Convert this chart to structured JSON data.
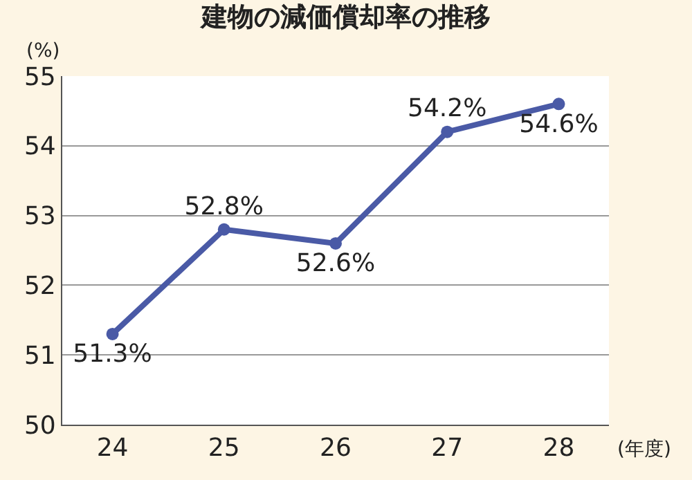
{
  "chart_data": {
    "type": "line",
    "title": "建物の減価償却率の推移",
    "xlabel": "(年度)",
    "ylabel": "(%)",
    "categories": [
      "24",
      "25",
      "26",
      "27",
      "28"
    ],
    "series": [
      {
        "color": "#4a5aa6",
        "values": [
          51.3,
          52.8,
          52.6,
          54.2,
          54.6
        ],
        "value_labels": [
          "51.3%",
          "52.8%",
          "52.6%",
          "54.2%",
          "54.6%"
        ]
      }
    ],
    "ylim": [
      50,
      55
    ],
    "yticks": [
      50,
      51,
      52,
      53,
      54,
      55
    ],
    "grid": "y",
    "marker": "circle",
    "line_style": "solid",
    "legend": false
  }
}
